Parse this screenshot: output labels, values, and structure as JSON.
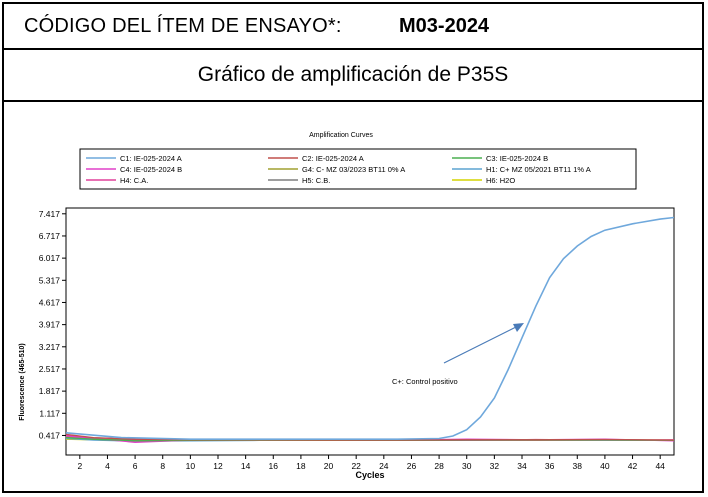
{
  "header": {
    "code_label": "CÓDIGO DEL ÍTEM DE ENSAYO*:",
    "code_value": "M03-2024",
    "subtitle": "Gráfico de amplificación de P35S"
  },
  "chart_data": {
    "type": "line",
    "title": "Amplification Curves",
    "xlabel": "Cycles",
    "ylabel": "Fluorescence (465-510)",
    "xlim": [
      1,
      45
    ],
    "ylim": [
      -0.2,
      7.6
    ],
    "xticks": [
      2,
      4,
      6,
      8,
      10,
      12,
      14,
      16,
      18,
      20,
      22,
      24,
      26,
      28,
      30,
      32,
      34,
      36,
      38,
      40,
      42,
      44
    ],
    "yticks": [
      "7.417",
      "6.717",
      "6.017",
      "5.317",
      "4.617",
      "3.917",
      "3.217",
      "2.517",
      "1.817",
      "1.117",
      "0.417"
    ],
    "ytick_values": [
      7.417,
      6.717,
      6.017,
      5.317,
      4.617,
      3.917,
      3.217,
      2.517,
      1.817,
      1.117,
      0.417
    ],
    "grid": false,
    "legend_position": "top",
    "annotation": "C+: Control positivo",
    "series": [
      {
        "name": "C1: IE-025-2024 A",
        "color": "#6fa8dc",
        "x": [
          1,
          5,
          10,
          15,
          20,
          25,
          28,
          29,
          30,
          31,
          32,
          33,
          34,
          35,
          36,
          37,
          38,
          39,
          40,
          42,
          44,
          45
        ],
        "y": [
          0.5,
          0.35,
          0.3,
          0.3,
          0.3,
          0.3,
          0.32,
          0.4,
          0.6,
          1.0,
          1.6,
          2.5,
          3.5,
          4.5,
          5.4,
          6.0,
          6.4,
          6.7,
          6.9,
          7.1,
          7.25,
          7.3
        ]
      },
      {
        "name": "C2: IE-025-2024 A",
        "color": "#c0504d",
        "x": [
          1,
          3,
          6,
          10,
          15,
          20,
          25,
          30,
          35,
          40,
          45
        ],
        "y": [
          0.45,
          0.35,
          0.3,
          0.28,
          0.28,
          0.27,
          0.27,
          0.28,
          0.28,
          0.29,
          0.27
        ]
      },
      {
        "name": "C3: IE-025-2024 B",
        "color": "#4caf50",
        "x": [
          1,
          3,
          6,
          10,
          15,
          20,
          25,
          30,
          35,
          40,
          45
        ],
        "y": [
          0.35,
          0.3,
          0.25,
          0.26,
          0.27,
          0.27,
          0.26,
          0.27,
          0.28,
          0.28,
          0.26
        ]
      },
      {
        "name": "C4: IE-025-2024 B",
        "color": "#e040c8",
        "x": [
          1,
          3,
          6,
          10,
          15,
          20,
          25,
          30,
          35,
          40,
          45
        ],
        "y": [
          0.4,
          0.32,
          0.2,
          0.27,
          0.3,
          0.28,
          0.27,
          0.3,
          0.28,
          0.3,
          0.25
        ]
      },
      {
        "name": "G4: C- MZ 03/2023 BT11 0% A",
        "color": "#a0a030",
        "x": [
          1,
          3,
          6,
          10,
          15,
          20,
          25,
          30,
          35,
          40,
          45
        ],
        "y": [
          0.38,
          0.3,
          0.25,
          0.28,
          0.27,
          0.26,
          0.27,
          0.28,
          0.27,
          0.28,
          0.27
        ]
      },
      {
        "name": "H1: C+ MZ 05/2021 BT11 1% A",
        "color": "#5ba3d0",
        "x": [
          1,
          3,
          6,
          10,
          15,
          20,
          25,
          30,
          35,
          40,
          45
        ],
        "y": [
          0.32,
          0.27,
          0.24,
          0.25,
          0.26,
          0.26,
          0.26,
          0.27,
          0.27,
          0.27,
          0.26
        ]
      },
      {
        "name": "H4: C.A.",
        "color": "#e0409a",
        "x": [
          1,
          3,
          6,
          10,
          15,
          20,
          25,
          30,
          35,
          40,
          45
        ],
        "y": [
          0.42,
          0.34,
          0.3,
          0.29,
          0.28,
          0.28,
          0.27,
          0.26,
          0.29,
          0.27,
          0.28
        ]
      },
      {
        "name": "H5: C.B.",
        "color": "#7f7f7f",
        "x": [
          1,
          3,
          6,
          10,
          15,
          20,
          25,
          30,
          35,
          40,
          45
        ],
        "y": [
          0.36,
          0.3,
          0.27,
          0.27,
          0.27,
          0.26,
          0.26,
          0.27,
          0.26,
          0.27,
          0.27
        ]
      },
      {
        "name": "H6: H2O",
        "color": "#d4d400",
        "x": [
          1,
          3,
          6,
          10,
          15,
          20,
          25,
          30,
          35,
          40,
          45
        ],
        "y": [
          0.3,
          0.28,
          0.26,
          0.26,
          0.26,
          0.26,
          0.26,
          0.26,
          0.26,
          0.26,
          0.26
        ]
      }
    ]
  }
}
